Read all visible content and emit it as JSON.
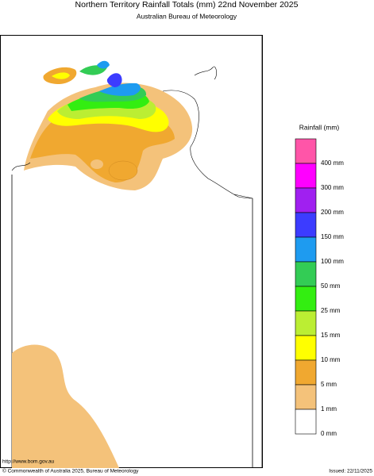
{
  "header": {
    "title": "Northern Territory Rainfall Totals (mm) 22nd November 2025",
    "subtitle": "Australian Bureau of Meteorology"
  },
  "legend": {
    "title": "Rainfall (mm)",
    "swatches": [
      "#ff55a8",
      "#ff00ff",
      "#a020f0",
      "#3c3cff",
      "#1e9bf0",
      "#33cc55",
      "#33ee11",
      "#bbee33",
      "#ffff00",
      "#f0a830",
      "#f4c27a",
      "#ffffff"
    ],
    "labels": [
      "400 mm",
      "300 mm",
      "200 mm",
      "150 mm",
      "100 mm",
      "50 mm",
      "25 mm",
      "15 mm",
      "10 mm",
      "5 mm",
      "1 mm",
      "0 mm"
    ]
  },
  "footer": {
    "url": "http://www.bom.gov.au",
    "copyright": "© Commonwealth of Australia 2025, Bureau of Meteorology",
    "issued": "Issued: 22/11/2025"
  }
}
